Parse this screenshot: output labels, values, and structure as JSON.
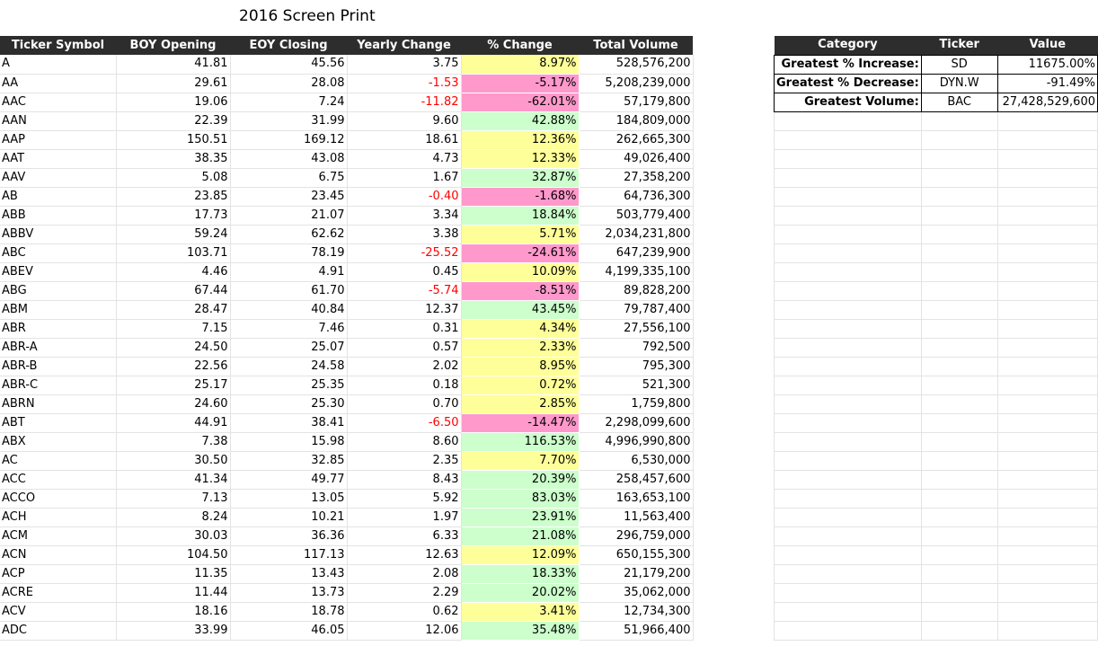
{
  "title": "2016 Screen Print",
  "main_table": {
    "headers": [
      "Ticker Symbol",
      "BOY Opening",
      "EOY Closing",
      "Yearly Change",
      "% Change",
      "Total Volume"
    ],
    "rows": [
      [
        "A",
        "41.81",
        "45.56",
        "3.75",
        "8.97%",
        "528,576,200"
      ],
      [
        "AA",
        "29.61",
        "28.08",
        "-1.53",
        "-5.17%",
        "5,208,239,000"
      ],
      [
        "AAC",
        "19.06",
        "7.24",
        "-11.82",
        "-62.01%",
        "57,179,800"
      ],
      [
        "AAN",
        "22.39",
        "31.99",
        "9.60",
        "42.88%",
        "184,809,000"
      ],
      [
        "AAP",
        "150.51",
        "169.12",
        "18.61",
        "12.36%",
        "262,665,300"
      ],
      [
        "AAT",
        "38.35",
        "43.08",
        "4.73",
        "12.33%",
        "49,026,400"
      ],
      [
        "AAV",
        "5.08",
        "6.75",
        "1.67",
        "32.87%",
        "27,358,200"
      ],
      [
        "AB",
        "23.85",
        "23.45",
        "-0.40",
        "-1.68%",
        "64,736,300"
      ],
      [
        "ABB",
        "17.73",
        "21.07",
        "3.34",
        "18.84%",
        "503,779,400"
      ],
      [
        "ABBV",
        "59.24",
        "62.62",
        "3.38",
        "5.71%",
        "2,034,231,800"
      ],
      [
        "ABC",
        "103.71",
        "78.19",
        "-25.52",
        "-24.61%",
        "647,239,900"
      ],
      [
        "ABEV",
        "4.46",
        "4.91",
        "0.45",
        "10.09%",
        "4,199,335,100"
      ],
      [
        "ABG",
        "67.44",
        "61.70",
        "-5.74",
        "-8.51%",
        "89,828,200"
      ],
      [
        "ABM",
        "28.47",
        "40.84",
        "12.37",
        "43.45%",
        "79,787,400"
      ],
      [
        "ABR",
        "7.15",
        "7.46",
        "0.31",
        "4.34%",
        "27,556,100"
      ],
      [
        "ABR-A",
        "24.50",
        "25.07",
        "0.57",
        "2.33%",
        "792,500"
      ],
      [
        "ABR-B",
        "22.56",
        "24.58",
        "2.02",
        "8.95%",
        "795,300"
      ],
      [
        "ABR-C",
        "25.17",
        "25.35",
        "0.18",
        "0.72%",
        "521,300"
      ],
      [
        "ABRN",
        "24.60",
        "25.30",
        "0.70",
        "2.85%",
        "1,759,800"
      ],
      [
        "ABT",
        "44.91",
        "38.41",
        "-6.50",
        "-14.47%",
        "2,298,099,600"
      ],
      [
        "ABX",
        "7.38",
        "15.98",
        "8.60",
        "116.53%",
        "4,996,990,800"
      ],
      [
        "AC",
        "30.50",
        "32.85",
        "2.35",
        "7.70%",
        "6,530,000"
      ],
      [
        "ACC",
        "41.34",
        "49.77",
        "8.43",
        "20.39%",
        "258,457,600"
      ],
      [
        "ACCO",
        "7.13",
        "13.05",
        "5.92",
        "83.03%",
        "163,653,100"
      ],
      [
        "ACH",
        "8.24",
        "10.21",
        "1.97",
        "23.91%",
        "11,563,400"
      ],
      [
        "ACM",
        "30.03",
        "36.36",
        "6.33",
        "21.08%",
        "296,759,000"
      ],
      [
        "ACN",
        "104.50",
        "117.13",
        "12.63",
        "12.09%",
        "650,155,300"
      ],
      [
        "ACP",
        "11.35",
        "13.43",
        "2.08",
        "18.33%",
        "21,179,200"
      ],
      [
        "ACRE",
        "11.44",
        "13.73",
        "2.29",
        "20.02%",
        "35,062,000"
      ],
      [
        "ACV",
        "18.16",
        "18.78",
        "0.62",
        "3.41%",
        "12,734,300"
      ],
      [
        "ADC",
        "33.99",
        "46.05",
        "12.06",
        "35.48%",
        "51,966,400"
      ]
    ]
  },
  "summary_table": {
    "headers": [
      "Category",
      "Ticker",
      "Value"
    ],
    "rows": [
      [
        "Greatest % Increase:",
        "SD",
        "11675.00%"
      ],
      [
        "Greatest % Decrease:",
        "DYN.W",
        "-91.49%"
      ],
      [
        "Greatest Volume:",
        "BAC",
        "27,428,529,600"
      ]
    ],
    "empty_rows": 28
  },
  "colors": {
    "header_bg": "#2d2d2d",
    "positive_large": "#ccffcc",
    "positive_small": "#ffff99",
    "negative": "#ff99cc",
    "negative_text": "#ff0000"
  }
}
